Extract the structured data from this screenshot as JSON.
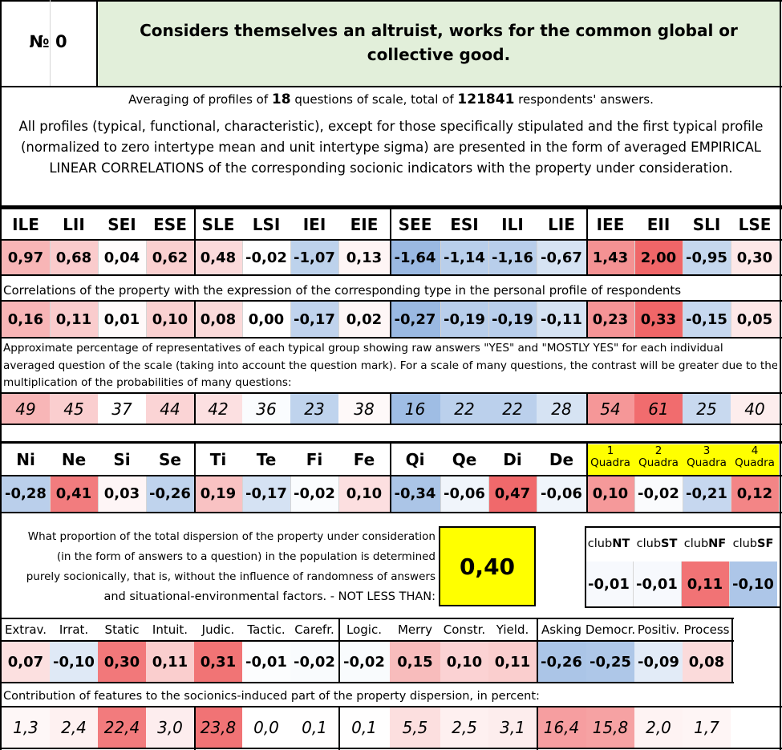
{
  "header": {
    "number_label": "№ 0",
    "title_line1": "Considers themselves an altruist, works for the common global or",
    "title_line2": "collective good."
  },
  "averaging": {
    "prefix": "Averaging of profiles of ",
    "questions": "18",
    "middle": " questions of scale, total of ",
    "respondents": "121841",
    "suffix": " respondents' answers."
  },
  "description": {
    "line1": "All profiles (typical, functional, characteristic), except for those specifically stipulated and the first typical profile",
    "line2": "(normalized to zero intertype mean and unit intertype sigma) are presented in the form of averaged EMPIRICAL",
    "line3": "LINEAR CORRELATIONS of the corresponding socionic indicators with the property under consideration."
  },
  "colors": {
    "title_bg": "#e2efda",
    "highlight_yellow": "#ffff00"
  },
  "types": {
    "headers": [
      "ILE",
      "LII",
      "SEI",
      "ESE",
      "SLE",
      "LSI",
      "IEI",
      "EIE",
      "SEE",
      "ESI",
      "ILI",
      "LIE",
      "IEE",
      "EII",
      "SLI",
      "LSE"
    ],
    "values": [
      "0,97",
      "0,68",
      "0,04",
      "0,62",
      "0,48",
      "-0,02",
      "-1,07",
      "0,13",
      "-1,64",
      "-1,14",
      "-1,16",
      "-0,67",
      "1,43",
      "2,00",
      "-0,95",
      "0,30"
    ]
  },
  "correlations": {
    "caption": "Correlations of the property with the expression of the corresponding type in the personal profile of respondents",
    "values": [
      "0,16",
      "0,11",
      "0,01",
      "0,10",
      "0,08",
      "0,00",
      "-0,17",
      "0,02",
      "-0,27",
      "-0,19",
      "-0,19",
      "-0,11",
      "0,23",
      "0,33",
      "-0,15",
      "0,05"
    ]
  },
  "percentages": {
    "caption_line1": "Approximate percentage of representatives of each typical group showing raw answers \"YES\" and \"MOSTLY YES\" for each individual",
    "caption_line2": "averaged question of the scale (taking into account the question mark). For a scale of many questions, the contrast will be greater due to the",
    "caption_line3": "multiplication of the probabilities of many questions:",
    "values": [
      "49",
      "45",
      "37",
      "44",
      "42",
      "36",
      "23",
      "38",
      "16",
      "22",
      "22",
      "28",
      "54",
      "61",
      "25",
      "40"
    ]
  },
  "functions": {
    "headers": [
      "Ni",
      "Ne",
      "Si",
      "Se",
      "Ti",
      "Te",
      "Fi",
      "Fe",
      "Qi",
      "Qe",
      "Di",
      "De"
    ],
    "values": [
      "-0,28",
      "0,41",
      "0,03",
      "-0,26",
      "0,19",
      "-0,17",
      "-0,02",
      "0,10",
      "-0,34",
      "-0,06",
      "0,47",
      "-0,06"
    ]
  },
  "quadras": {
    "numbers": [
      "1",
      "2",
      "3",
      "4"
    ],
    "label": "Quadra",
    "values": [
      "0,10",
      "-0,02",
      "-0,21",
      "0,12"
    ]
  },
  "dispersion": {
    "line1": "What proportion of the total dispersion of the property under consideration",
    "line2": "(in the form of answers to a question) in the population is determined",
    "line3": "purely socionically, that is, without the influence of randomness of answers",
    "line4": "and situational-environmental factors. - NOT LESS THAN:",
    "value": "0,40"
  },
  "clubs": {
    "prefix": "club",
    "names": [
      "NT",
      "ST",
      "NF",
      "SF"
    ],
    "values": [
      "-0,01",
      "-0,01",
      "0,11",
      "-0,10"
    ]
  },
  "features": {
    "headers": [
      "Extrav.",
      "Irrat.",
      "Static",
      "Intuit.",
      "Judic.",
      "Tactic.",
      "Carefr.",
      "Logic.",
      "Merry",
      "Constr.",
      "Yield.",
      "Asking",
      "Democr.",
      "Positiv.",
      "Process"
    ],
    "values": [
      "0,07",
      "-0,10",
      "0,30",
      "0,11",
      "0,31",
      "-0,01",
      "-0,02",
      "-0,02",
      "0,15",
      "0,10",
      "0,11",
      "-0,26",
      "-0,25",
      "-0,09",
      "0,08"
    ]
  },
  "contribution": {
    "caption": "Contribution of features to the sociоnics-induced part of the property dispersion, in percent:",
    "values": [
      "1,3",
      "2,4",
      "22,4",
      "3,0",
      "23,8",
      "0,0",
      "0,1",
      "0,1",
      "5,5",
      "2,5",
      "3,1",
      "16,4",
      "15,8",
      "2,0",
      "1,7"
    ]
  }
}
